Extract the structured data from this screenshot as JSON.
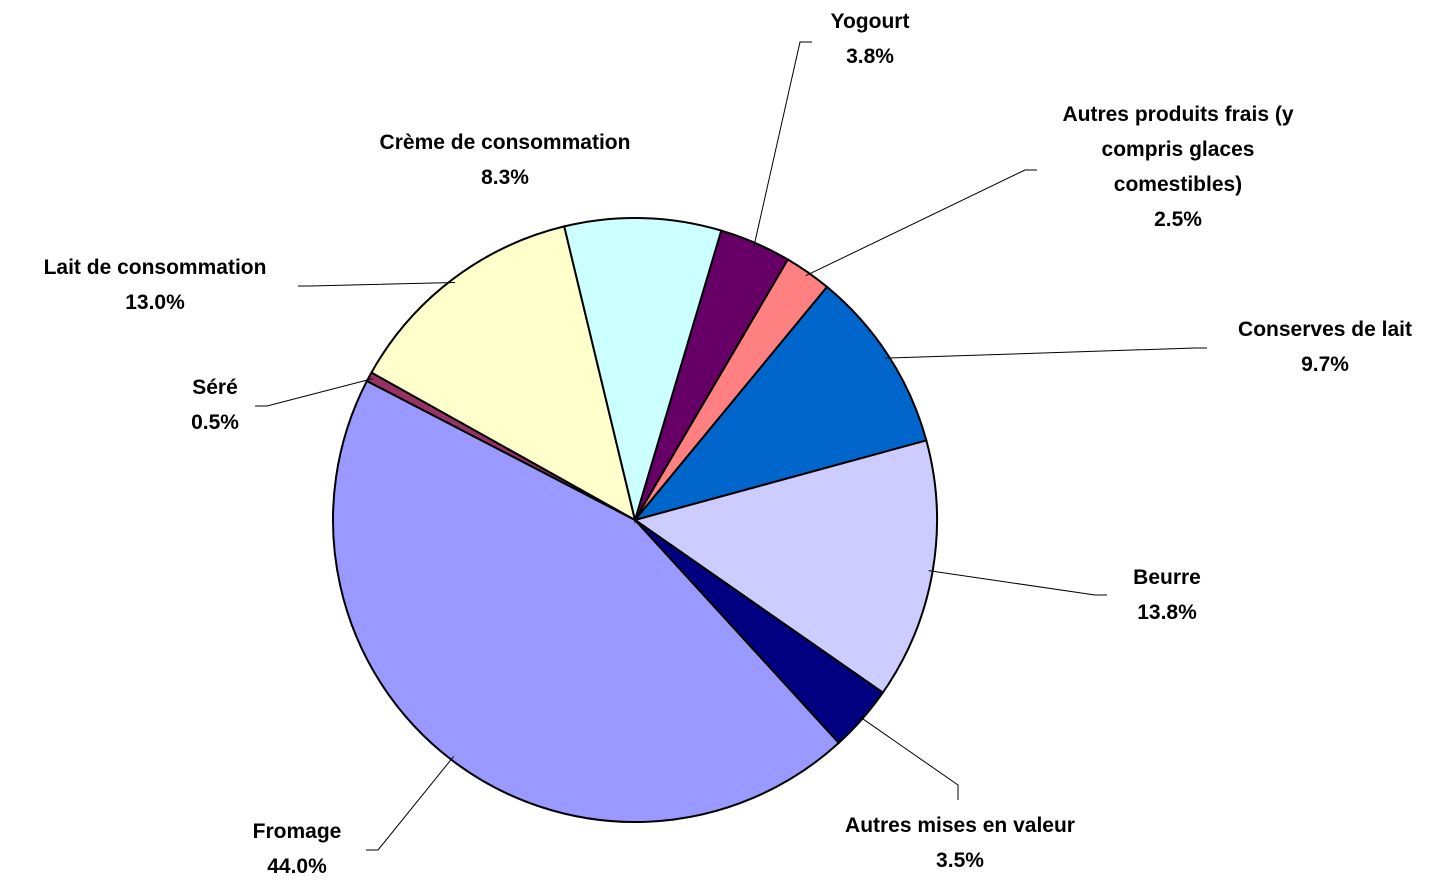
{
  "chart_data": {
    "type": "pie",
    "categories": [
      "Yogourt",
      "Autres produits frais (y compris glaces comestibles)",
      "Conserves de lait",
      "Beurre",
      "Autres mises en valeur",
      "Fromage",
      "Séré",
      "Lait de consommation",
      "Crème de consommation"
    ],
    "values": [
      3.8,
      2.5,
      9.7,
      13.8,
      3.5,
      44.0,
      0.5,
      13.0,
      8.3
    ],
    "value_labels": [
      "3.8%",
      "2.5%",
      "9.7%",
      "13.8%",
      "3.5%",
      "44.0%",
      "0.5%",
      "13.0%",
      "8.3%"
    ],
    "colors": [
      "#660066",
      "#ff8080",
      "#0066cc",
      "#ccccff",
      "#000080",
      "#9999ff",
      "#993366",
      "#ffffcc",
      "#ccffff"
    ]
  }
}
